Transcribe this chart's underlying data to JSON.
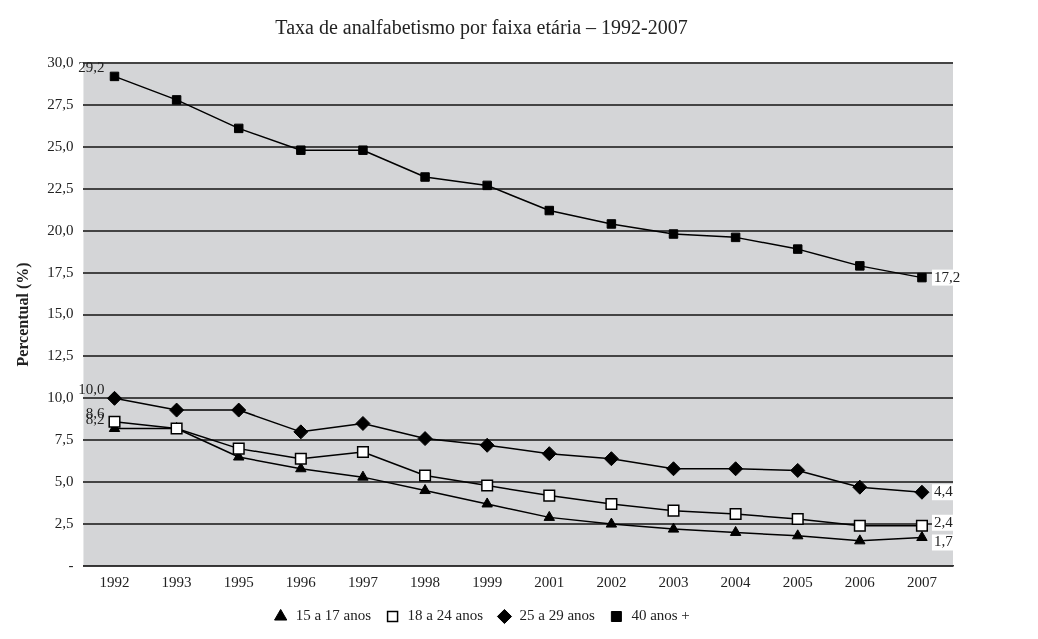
{
  "chart_data": {
    "type": "line",
    "title": "Taxa de analfabetismo por faixa etária – 1992-2007",
    "ylabel": "Percentual (%)",
    "categories": [
      "1992",
      "1993",
      "1995",
      "1996",
      "1997",
      "1998",
      "1999",
      "2001",
      "2002",
      "2003",
      "2004",
      "2005",
      "2006",
      "2007"
    ],
    "series": [
      {
        "name": "15 a 17 anos",
        "color": "#000000",
        "marker": "triangle",
        "values": [
          8.2,
          8.2,
          6.5,
          5.8,
          5.3,
          4.5,
          3.7,
          2.9,
          2.5,
          2.2,
          2.0,
          1.8,
          1.5,
          1.7
        ],
        "value_labels": [
          "8,2",
          null,
          null,
          null,
          null,
          null,
          null,
          null,
          null,
          null,
          null,
          null,
          null,
          "1,7"
        ]
      },
      {
        "name": "18 a 24 anos",
        "color": "#000000",
        "marker": "square",
        "values": [
          8.6,
          8.2,
          7.0,
          6.4,
          6.8,
          5.4,
          4.8,
          4.2,
          3.7,
          3.3,
          3.1,
          2.8,
          2.4,
          2.4
        ],
        "value_labels": [
          "8,6",
          null,
          null,
          null,
          null,
          null,
          null,
          null,
          null,
          null,
          null,
          null,
          null,
          "2,4"
        ]
      },
      {
        "name": "25 a 29 anos",
        "color": "#000000",
        "marker": "diamond",
        "values": [
          10.0,
          9.3,
          9.3,
          8.0,
          8.5,
          7.6,
          7.2,
          6.7,
          6.4,
          5.8,
          5.8,
          5.7,
          4.7,
          4.4
        ],
        "value_labels": [
          "10,0",
          null,
          null,
          null,
          null,
          null,
          null,
          null,
          null,
          null,
          null,
          null,
          null,
          "4,4"
        ]
      },
      {
        "name": "40 anos +",
        "color": "#000000",
        "marker": "square",
        "values": [
          29.2,
          27.8,
          26.1,
          24.8,
          24.8,
          23.2,
          22.7,
          21.2,
          20.4,
          19.8,
          19.6,
          18.9,
          17.9,
          17.2
        ],
        "value_labels": [
          "29,2",
          null,
          null,
          null,
          null,
          null,
          null,
          null,
          null,
          null,
          null,
          null,
          null,
          "17,2"
        ]
      }
    ],
    "ylim": [
      0,
      30
    ],
    "yticks": [
      {
        "value": 0,
        "label": "-"
      },
      {
        "value": 2.5,
        "label": "2,5"
      },
      {
        "value": 5,
        "label": "5,0"
      },
      {
        "value": 7.5,
        "label": "7,5"
      },
      {
        "value": 10,
        "label": "10,0"
      },
      {
        "value": 12.5,
        "label": "12,5"
      },
      {
        "value": 15,
        "label": "15,0"
      },
      {
        "value": 17.5,
        "label": "17,5"
      },
      {
        "value": 20,
        "label": "20,0"
      },
      {
        "value": 22.5,
        "label": "22,5"
      },
      {
        "value": 25,
        "label": "25,0"
      },
      {
        "value": 27.5,
        "label": "27,5"
      },
      {
        "value": 30,
        "label": "30,0"
      }
    ],
    "grid": "y",
    "legend": "bottom",
    "line_style": "solid"
  }
}
